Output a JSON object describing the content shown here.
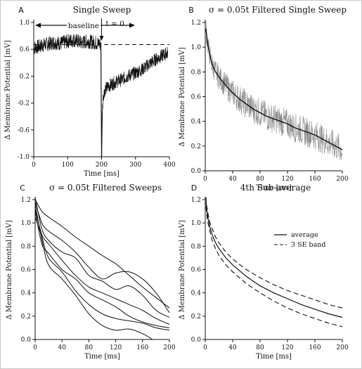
{
  "figure": {
    "background": "#ffffff",
    "ink": "#111111",
    "noise_gray": "#8a8a8a"
  },
  "chart_data": [
    {
      "panel": "A",
      "type": "line",
      "title": "Single Sweep",
      "xlabel": "Time  [ms]",
      "ylabel": "Δ Membrane Potential  [mV]",
      "xlim": [
        0,
        400
      ],
      "ylim": [
        -1.0,
        1.0
      ],
      "xticks": [
        0,
        100,
        200,
        300,
        400
      ],
      "yticks": [
        1.0,
        0.6,
        0.2,
        -0.2,
        -0.6,
        -1.0
      ],
      "ytick_labels": [
        "1.0",
        "0.6",
        "0.2",
        "-0.2",
        "-0.6",
        "-1.0"
      ],
      "dashed_baseline_level": 0.67,
      "annotations": {
        "baseline": "baseline",
        "t0": "t = 0"
      },
      "series": [
        {
          "x": [
            0,
            20,
            40,
            60,
            80,
            100,
            120,
            140,
            160,
            180,
            196
          ],
          "y": [
            0.62,
            0.65,
            0.68,
            0.7,
            0.69,
            0.72,
            0.74,
            0.7,
            0.72,
            0.7,
            0.68
          ]
        },
        {
          "x": [
            200,
            202,
            205,
            210,
            220,
            240,
            260,
            280,
            300,
            320,
            340,
            360,
            380,
            395
          ],
          "y": [
            -1.0,
            -0.35,
            -0.08,
            0.0,
            0.05,
            0.11,
            0.15,
            0.21,
            0.25,
            0.3,
            0.38,
            0.45,
            0.51,
            0.55
          ]
        }
      ]
    },
    {
      "panel": "B",
      "type": "line",
      "title": "σ = 0.05t Filtered Single Sweep",
      "xlabel": "Time  [ms]",
      "ylabel": "Δ Membrane Potential  [mV]",
      "xlim": [
        0,
        200
      ],
      "ylim": [
        0,
        1.2
      ],
      "xticks": [
        0,
        40,
        80,
        120,
        160,
        200
      ],
      "yticks": [
        0,
        0.2,
        0.4,
        0.6,
        0.8,
        1.0,
        1.2
      ],
      "ytick_labels": [
        "0.0",
        "0.2",
        "0.4",
        "0.6",
        "0.8",
        "1.0",
        "1.2"
      ],
      "series": [
        {
          "name": "filtered",
          "x": [
            1,
            3,
            6,
            10,
            15,
            20,
            30,
            40,
            50,
            60,
            70,
            80,
            90,
            100,
            110,
            120,
            130,
            140,
            150,
            160,
            170,
            180,
            190,
            200
          ],
          "y": [
            1.15,
            1.05,
            0.95,
            0.86,
            0.8,
            0.76,
            0.69,
            0.63,
            0.58,
            0.54,
            0.5,
            0.47,
            0.44,
            0.42,
            0.4,
            0.38,
            0.35,
            0.33,
            0.31,
            0.29,
            0.26,
            0.23,
            0.2,
            0.17
          ]
        }
      ]
    },
    {
      "panel": "C",
      "type": "line",
      "title": "σ = 0.05t Filtered Sweeps",
      "xlabel": "Time  [ms]",
      "ylabel": "Δ Membrane Potential  [mV]",
      "xlim": [
        0,
        200
      ],
      "ylim": [
        0,
        1.2
      ],
      "xticks": [
        0,
        40,
        80,
        120,
        160,
        200
      ],
      "yticks": [
        0,
        0.2,
        0.4,
        0.6,
        0.8,
        1.0,
        1.2
      ],
      "ytick_labels": [
        "0.0",
        "0.2",
        "0.4",
        "0.6",
        "0.8",
        "1.0",
        "1.2"
      ],
      "series": [
        {
          "x": [
            0,
            10,
            20,
            40,
            60,
            80,
            100,
            120,
            140,
            160,
            180,
            200
          ],
          "y": [
            1.2,
            1.1,
            1.05,
            0.97,
            0.88,
            0.8,
            0.72,
            0.65,
            0.55,
            0.45,
            0.36,
            0.27
          ]
        },
        {
          "x": [
            0,
            10,
            20,
            40,
            60,
            80,
            100,
            120,
            140,
            160,
            180,
            200
          ],
          "y": [
            1.18,
            1.0,
            0.93,
            0.85,
            0.75,
            0.62,
            0.52,
            0.57,
            0.58,
            0.52,
            0.4,
            0.23
          ]
        },
        {
          "x": [
            0,
            10,
            20,
            40,
            60,
            80,
            100,
            120,
            140,
            160,
            180,
            200
          ],
          "y": [
            1.22,
            0.95,
            0.85,
            0.75,
            0.7,
            0.55,
            0.5,
            0.43,
            0.46,
            0.38,
            0.25,
            0.19
          ]
        },
        {
          "x": [
            0,
            10,
            20,
            40,
            60,
            80,
            100,
            120,
            140,
            160,
            180,
            200
          ],
          "y": [
            1.12,
            0.9,
            0.82,
            0.68,
            0.55,
            0.45,
            0.4,
            0.35,
            0.3,
            0.25,
            0.18,
            0.13
          ]
        },
        {
          "x": [
            0,
            10,
            20,
            40,
            60,
            80,
            100,
            120,
            140,
            160,
            180,
            200
          ],
          "y": [
            1.1,
            0.82,
            0.74,
            0.6,
            0.52,
            0.4,
            0.34,
            0.28,
            0.2,
            0.15,
            0.12,
            0.1
          ]
        },
        {
          "x": [
            0,
            10,
            20,
            40,
            60,
            80,
            100,
            120,
            140,
            160,
            180,
            200
          ],
          "y": [
            1.05,
            0.88,
            0.7,
            0.58,
            0.42,
            0.3,
            0.22,
            0.18,
            0.16,
            0.14,
            0.1,
            0.08
          ]
        },
        {
          "x": [
            0,
            10,
            20,
            40,
            60,
            80,
            100,
            120,
            140,
            160,
            175
          ],
          "y": [
            1.16,
            0.86,
            0.64,
            0.52,
            0.38,
            0.22,
            0.12,
            0.08,
            0.09,
            0.05,
            0.0
          ]
        }
      ]
    },
    {
      "panel": "D",
      "type": "line",
      "title": "4th Sub-average",
      "xlabel": "Time  [ms]",
      "ylabel": "Δ Membrane Potential  [mV]",
      "xlim": [
        0,
        200
      ],
      "ylim": [
        0,
        1.2
      ],
      "xticks": [
        0,
        40,
        80,
        120,
        160,
        200
      ],
      "yticks": [
        0,
        0.2,
        0.4,
        0.6,
        0.8,
        1.0,
        1.2
      ],
      "ytick_labels": [
        "0.0",
        "0.2",
        "0.4",
        "0.6",
        "0.8",
        "1.0",
        "1.2"
      ],
      "legend": {
        "position": "right",
        "entries": [
          "average",
          "3 SE band"
        ]
      },
      "series": [
        {
          "name": "average",
          "style": "solid",
          "x": [
            1,
            2,
            4,
            7,
            10,
            15,
            20,
            30,
            40,
            60,
            80,
            100,
            120,
            140,
            160,
            180,
            200
          ],
          "y": [
            1.18,
            1.12,
            1.04,
            0.96,
            0.9,
            0.83,
            0.78,
            0.7,
            0.64,
            0.54,
            0.46,
            0.4,
            0.35,
            0.3,
            0.26,
            0.22,
            0.19
          ]
        },
        {
          "name": "3 SE band",
          "style": "dashed",
          "x": [
            1,
            2,
            4,
            7,
            10,
            15,
            20,
            30,
            40,
            60,
            80,
            100,
            120,
            140,
            160,
            180,
            200
          ],
          "y": [
            1.22,
            1.15,
            1.08,
            1.0,
            0.95,
            0.88,
            0.83,
            0.75,
            0.69,
            0.6,
            0.53,
            0.47,
            0.42,
            0.38,
            0.34,
            0.3,
            0.27
          ]
        },
        {
          "name": "3 SE band",
          "style": "dashed",
          "x": [
            1,
            2,
            4,
            7,
            10,
            15,
            20,
            30,
            40,
            60,
            80,
            100,
            120,
            140,
            160,
            180,
            200
          ],
          "y": [
            1.14,
            1.08,
            1.0,
            0.92,
            0.85,
            0.78,
            0.72,
            0.64,
            0.58,
            0.48,
            0.4,
            0.33,
            0.27,
            0.22,
            0.18,
            0.14,
            0.11
          ]
        }
      ]
    }
  ]
}
